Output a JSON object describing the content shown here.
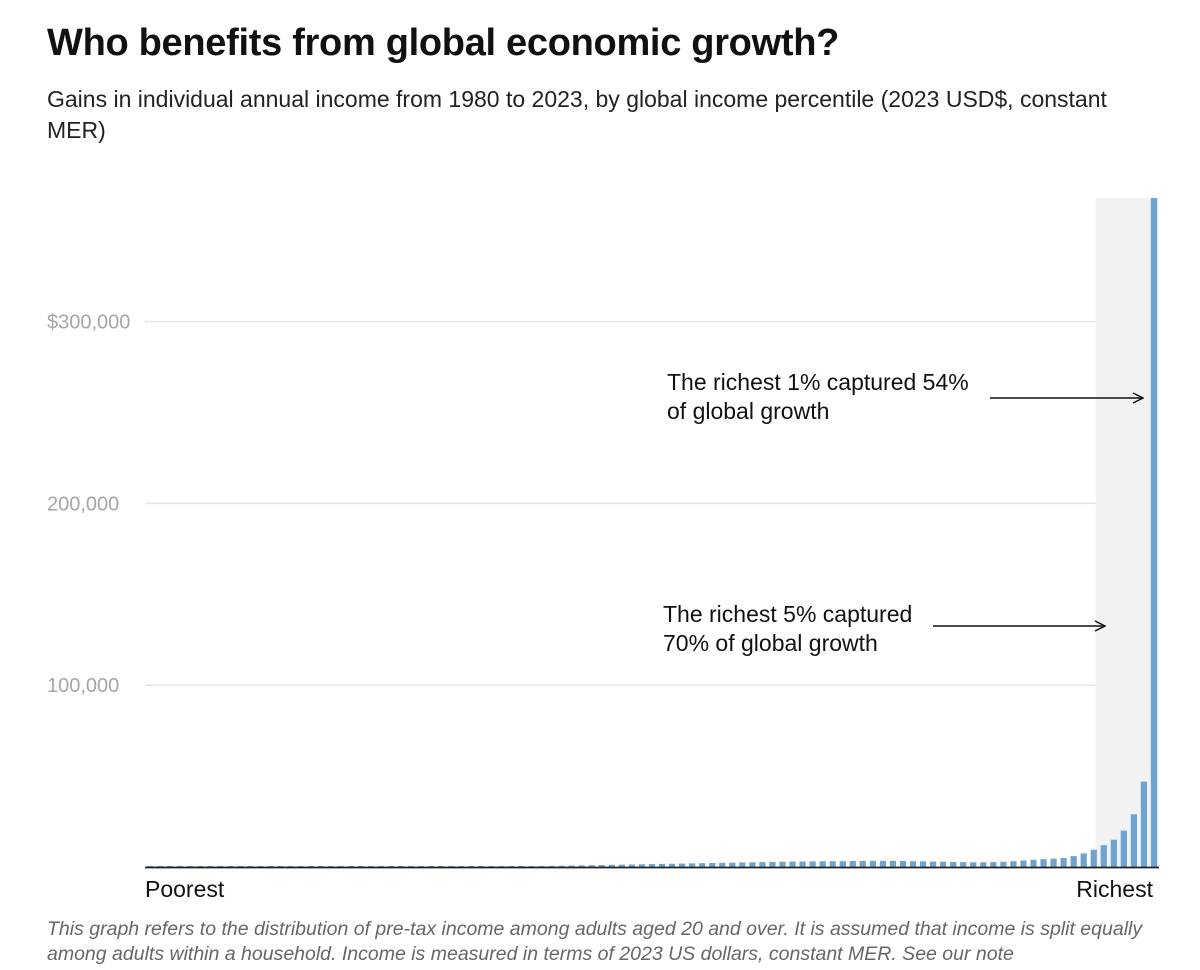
{
  "header": {
    "title": "Who benefits from global economic growth?",
    "subtitle": "Gains in individual annual income from 1980 to 2023, by global income percentile (2023 USD$, constant MER)"
  },
  "chart_data": {
    "type": "bar",
    "title": "Who benefits from global economic growth?",
    "subtitle": "Gains in individual annual income from 1980 to 2023, by global income percentile (2023 USD$, constant MER)",
    "xlabel": "",
    "ylabel": "",
    "x_extremes": {
      "left": "Poorest",
      "right": "Richest"
    },
    "ylim": [
      0,
      368000
    ],
    "y_ticks": [
      {
        "value": 100000,
        "label": "100,000"
      },
      {
        "value": 200000,
        "label": "200,000"
      },
      {
        "value": 300000,
        "label": "$300,000"
      }
    ],
    "grid": true,
    "highlight_range": {
      "from_percentile": 96,
      "to_percentile": 100,
      "color": "#f2f2f2"
    },
    "series": [
      {
        "values": [
          0,
          0,
          0,
          0,
          0,
          0,
          0,
          0,
          0,
          0,
          0,
          0,
          0,
          0,
          0,
          0,
          0,
          0,
          0,
          0,
          0,
          0,
          0,
          0,
          0,
          0,
          0,
          0,
          0,
          0,
          100,
          150,
          200,
          250,
          300,
          350,
          400,
          450,
          500,
          550,
          600,
          700,
          800,
          900,
          1000,
          1100,
          1200,
          1300,
          1400,
          1500,
          1600,
          1700,
          1800,
          1900,
          2000,
          2100,
          2200,
          2300,
          2400,
          2500,
          2600,
          2700,
          2800,
          2900,
          3000,
          3050,
          3100,
          3150,
          3200,
          3250,
          3300,
          3350,
          3400,
          3400,
          3400,
          3300,
          3200,
          3100,
          3000,
          2900,
          2800,
          2700,
          2600,
          2600,
          2700,
          2900,
          3200,
          3600,
          4000,
          4300,
          4600,
          5000,
          6000,
          7500,
          9500,
          12000,
          15000,
          20000,
          29000,
          47000,
          368000
        ]
      }
    ],
    "annotations": [
      {
        "lines": [
          "The richest 1% captured 54%",
          "of global growth"
        ],
        "target_percentile": 100
      },
      {
        "lines": [
          "The richest 5% captured",
          "70% of global growth"
        ],
        "target_percentile": 96
      }
    ],
    "colors": {
      "bar": "#6fa3cf",
      "grid": "#e6e6e6",
      "axis": "#222222",
      "highlight": "#f2f2f2"
    }
  },
  "footer": {
    "note": "This graph refers to the distribution of pre-tax income among adults aged 20 and over. It is assumed that income is split equally among adults within a household. Income is measured in terms of 2023 US dollars, constant MER. See our note"
  }
}
